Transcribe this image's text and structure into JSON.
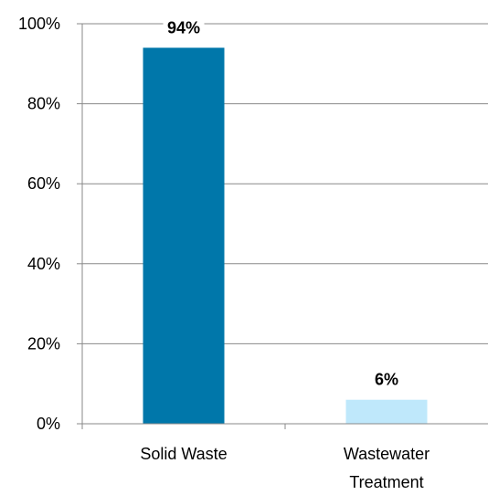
{
  "chart_data": {
    "type": "bar",
    "categories": [
      "Solid Waste",
      "Wastewater Treatment"
    ],
    "category_lines": [
      [
        "Solid Waste"
      ],
      [
        "Wastewater",
        "Treatment"
      ]
    ],
    "values": [
      94,
      6
    ],
    "data_labels": [
      "94%",
      "6%"
    ],
    "bar_colors": [
      "#0077aa",
      "#bfe8fb"
    ],
    "ylim": [
      0,
      100
    ],
    "yticks": [
      0,
      20,
      40,
      60,
      80,
      100
    ],
    "ytick_labels": [
      "0%",
      "20%",
      "40%",
      "60%",
      "80%",
      "100%"
    ],
    "grid": true,
    "legend": "none",
    "title": "",
    "xlabel": "",
    "ylabel": ""
  }
}
